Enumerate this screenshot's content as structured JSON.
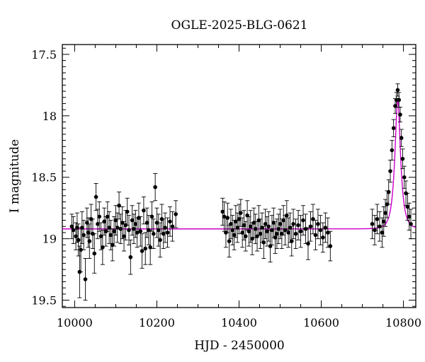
{
  "chart_data": {
    "type": "scatter",
    "title": "OGLE-2025-BLG-0621",
    "xlabel": "HJD - 2450000",
    "ylabel": "I magnitude",
    "xlim": [
      9970,
      10830
    ],
    "ylim": [
      19.56,
      17.42
    ],
    "y_inverted": true,
    "x_ticks": [
      10000,
      10200,
      10400,
      10600,
      10800
    ],
    "y_ticks": [
      17.5,
      18,
      18.5,
      19,
      19.5
    ],
    "x_tick_labels": [
      "10000",
      "10200",
      "10400",
      "10600",
      "10800"
    ],
    "y_tick_labels": [
      "17.5",
      "18",
      "18.5",
      "19",
      "19.5"
    ],
    "colors": {
      "points": "#000000",
      "model": "#cc00cc",
      "axes": "#000000"
    },
    "series": [
      {
        "kind": "points_with_errorbars",
        "points": [
          [
            9993,
            18.9,
            0.1
          ],
          [
            9997,
            18.93,
            0.11
          ],
          [
            10003,
            18.98,
            0.11
          ],
          [
            10006,
            18.91,
            0.12
          ],
          [
            10009,
            19.01,
            0.13
          ],
          [
            10012,
            19.27,
            0.21
          ],
          [
            10015,
            19.09,
            0.18
          ],
          [
            10018,
            18.91,
            0.13
          ],
          [
            10022,
            18.97,
            0.12
          ],
          [
            10026,
            19.33,
            0.17
          ],
          [
            10030,
            18.87,
            0.12
          ],
          [
            10033,
            18.95,
            0.12
          ],
          [
            10036,
            19.02,
            0.14
          ],
          [
            10040,
            18.84,
            0.12
          ],
          [
            10044,
            18.96,
            0.12
          ],
          [
            10048,
            19.12,
            0.16
          ],
          [
            10052,
            18.66,
            0.11
          ],
          [
            10056,
            18.88,
            0.12
          ],
          [
            10060,
            18.82,
            0.12
          ],
          [
            10064,
            18.98,
            0.11
          ],
          [
            10068,
            19.07,
            0.14
          ],
          [
            10072,
            18.86,
            0.11
          ],
          [
            10076,
            18.94,
            0.12
          ],
          [
            10080,
            18.82,
            0.12
          ],
          [
            10084,
            18.91,
            0.13
          ],
          [
            10088,
            18.97,
            0.12
          ],
          [
            10092,
            19.05,
            0.13
          ],
          [
            10096,
            18.94,
            0.12
          ],
          [
            10100,
            18.85,
            0.12
          ],
          [
            10104,
            18.91,
            0.12
          ],
          [
            10108,
            18.73,
            0.11
          ],
          [
            10112,
            18.92,
            0.12
          ],
          [
            10116,
            18.87,
            0.13
          ],
          [
            10120,
            18.98,
            0.12
          ],
          [
            10124,
            18.89,
            0.12
          ],
          [
            10128,
            18.78,
            0.11
          ],
          [
            10132,
            18.93,
            0.12
          ],
          [
            10136,
            19.15,
            0.14
          ],
          [
            10140,
            18.85,
            0.12
          ],
          [
            10144,
            18.92,
            0.12
          ],
          [
            10148,
            18.88,
            0.11
          ],
          [
            10152,
            18.95,
            0.12
          ],
          [
            10156,
            18.83,
            0.12
          ],
          [
            10160,
            18.94,
            0.12
          ],
          [
            10164,
            19.1,
            0.14
          ],
          [
            10168,
            18.77,
            0.11
          ],
          [
            10172,
            19.08,
            0.13
          ],
          [
            10176,
            18.87,
            0.12
          ],
          [
            10180,
            18.93,
            0.12
          ],
          [
            10184,
            19.07,
            0.14
          ],
          [
            10188,
            18.82,
            0.12
          ],
          [
            10192,
            18.96,
            0.12
          ],
          [
            10196,
            18.58,
            0.11
          ],
          [
            10200,
            18.87,
            0.12
          ],
          [
            10204,
            18.93,
            0.13
          ],
          [
            10208,
            19.01,
            0.14
          ],
          [
            10212,
            18.84,
            0.12
          ],
          [
            10216,
            18.96,
            0.12
          ],
          [
            10220,
            18.91,
            0.12
          ],
          [
            10226,
            18.95,
            0.12
          ],
          [
            10232,
            18.86,
            0.12
          ],
          [
            10238,
            18.9,
            0.12
          ],
          [
            10246,
            18.8,
            0.11
          ],
          [
            10360,
            18.78,
            0.11
          ],
          [
            10364,
            18.82,
            0.12
          ],
          [
            10368,
            18.95,
            0.12
          ],
          [
            10372,
            18.83,
            0.12
          ],
          [
            10376,
            19.02,
            0.13
          ],
          [
            10380,
            18.88,
            0.12
          ],
          [
            10384,
            18.93,
            0.12
          ],
          [
            10388,
            18.97,
            0.12
          ],
          [
            10392,
            18.86,
            0.13
          ],
          [
            10396,
            18.91,
            0.12
          ],
          [
            10400,
            18.84,
            0.12
          ],
          [
            10404,
            18.79,
            0.11
          ],
          [
            10408,
            18.95,
            0.12
          ],
          [
            10412,
            18.89,
            0.12
          ],
          [
            10416,
            18.98,
            0.12
          ],
          [
            10420,
            18.81,
            0.12
          ],
          [
            10424,
            18.94,
            0.12
          ],
          [
            10428,
            18.9,
            0.13
          ],
          [
            10432,
            19.0,
            0.13
          ],
          [
            10436,
            18.87,
            0.12
          ],
          [
            10440,
            18.92,
            0.12
          ],
          [
            10444,
            18.98,
            0.12
          ],
          [
            10448,
            18.85,
            0.12
          ],
          [
            10452,
            18.96,
            0.12
          ],
          [
            10456,
            18.91,
            0.12
          ],
          [
            10460,
            19.03,
            0.13
          ],
          [
            10464,
            18.88,
            0.12
          ],
          [
            10468,
            18.94,
            0.12
          ],
          [
            10472,
            18.9,
            0.12
          ],
          [
            10476,
            19.06,
            0.13
          ],
          [
            10480,
            18.93,
            0.12
          ],
          [
            10484,
            18.87,
            0.12
          ],
          [
            10488,
            18.99,
            0.13
          ],
          [
            10492,
            18.96,
            0.12
          ],
          [
            10496,
            18.92,
            0.12
          ],
          [
            10500,
            18.88,
            0.12
          ],
          [
            10504,
            18.96,
            0.12
          ],
          [
            10508,
            18.85,
            0.12
          ],
          [
            10512,
            18.93,
            0.12
          ],
          [
            10516,
            18.81,
            0.12
          ],
          [
            10520,
            18.95,
            0.12
          ],
          [
            10524,
            18.91,
            0.12
          ],
          [
            10528,
            19.02,
            0.12
          ],
          [
            10532,
            18.88,
            0.12
          ],
          [
            10538,
            18.96,
            0.12
          ],
          [
            10544,
            18.89,
            0.12
          ],
          [
            10550,
            18.94,
            0.13
          ],
          [
            10556,
            18.85,
            0.12
          ],
          [
            10562,
            18.92,
            0.12
          ],
          [
            10568,
            19.04,
            0.13
          ],
          [
            10574,
            18.9,
            0.12
          ],
          [
            10580,
            18.84,
            0.12
          ],
          [
            10586,
            18.97,
            0.12
          ],
          [
            10592,
            18.88,
            0.12
          ],
          [
            10598,
            18.93,
            0.12
          ],
          [
            10604,
            18.99,
            0.12
          ],
          [
            10610,
            18.91,
            0.12
          ],
          [
            10616,
            18.95,
            0.12
          ],
          [
            10622,
            19.06,
            0.12
          ],
          [
            10724,
            18.88,
            0.12
          ],
          [
            10730,
            18.93,
            0.12
          ],
          [
            10736,
            18.84,
            0.12
          ],
          [
            10742,
            18.9,
            0.12
          ],
          [
            10748,
            18.95,
            0.12
          ],
          [
            10752,
            18.86,
            0.12
          ],
          [
            10756,
            18.79,
            0.11
          ],
          [
            10760,
            18.72,
            0.11
          ],
          [
            10764,
            18.62,
            0.1
          ],
          [
            10768,
            18.45,
            0.09
          ],
          [
            10772,
            18.28,
            0.08
          ],
          [
            10776,
            18.1,
            0.07
          ],
          [
            10780,
            17.92,
            0.06
          ],
          [
            10783,
            17.87,
            0.06
          ],
          [
            10786,
            17.79,
            0.05
          ],
          [
            10789,
            17.87,
            0.06
          ],
          [
            10792,
            17.99,
            0.06
          ],
          [
            10795,
            18.18,
            0.07
          ],
          [
            10798,
            18.35,
            0.08
          ],
          [
            10802,
            18.5,
            0.09
          ],
          [
            10806,
            18.63,
            0.1
          ],
          [
            10810,
            18.74,
            0.11
          ],
          [
            10814,
            18.82,
            0.11
          ],
          [
            10818,
            18.88,
            0.12
          ]
        ]
      },
      {
        "kind": "model_curve",
        "baseline": 18.92,
        "peak": 17.86,
        "t0": 10786,
        "tE": 13
      }
    ]
  }
}
